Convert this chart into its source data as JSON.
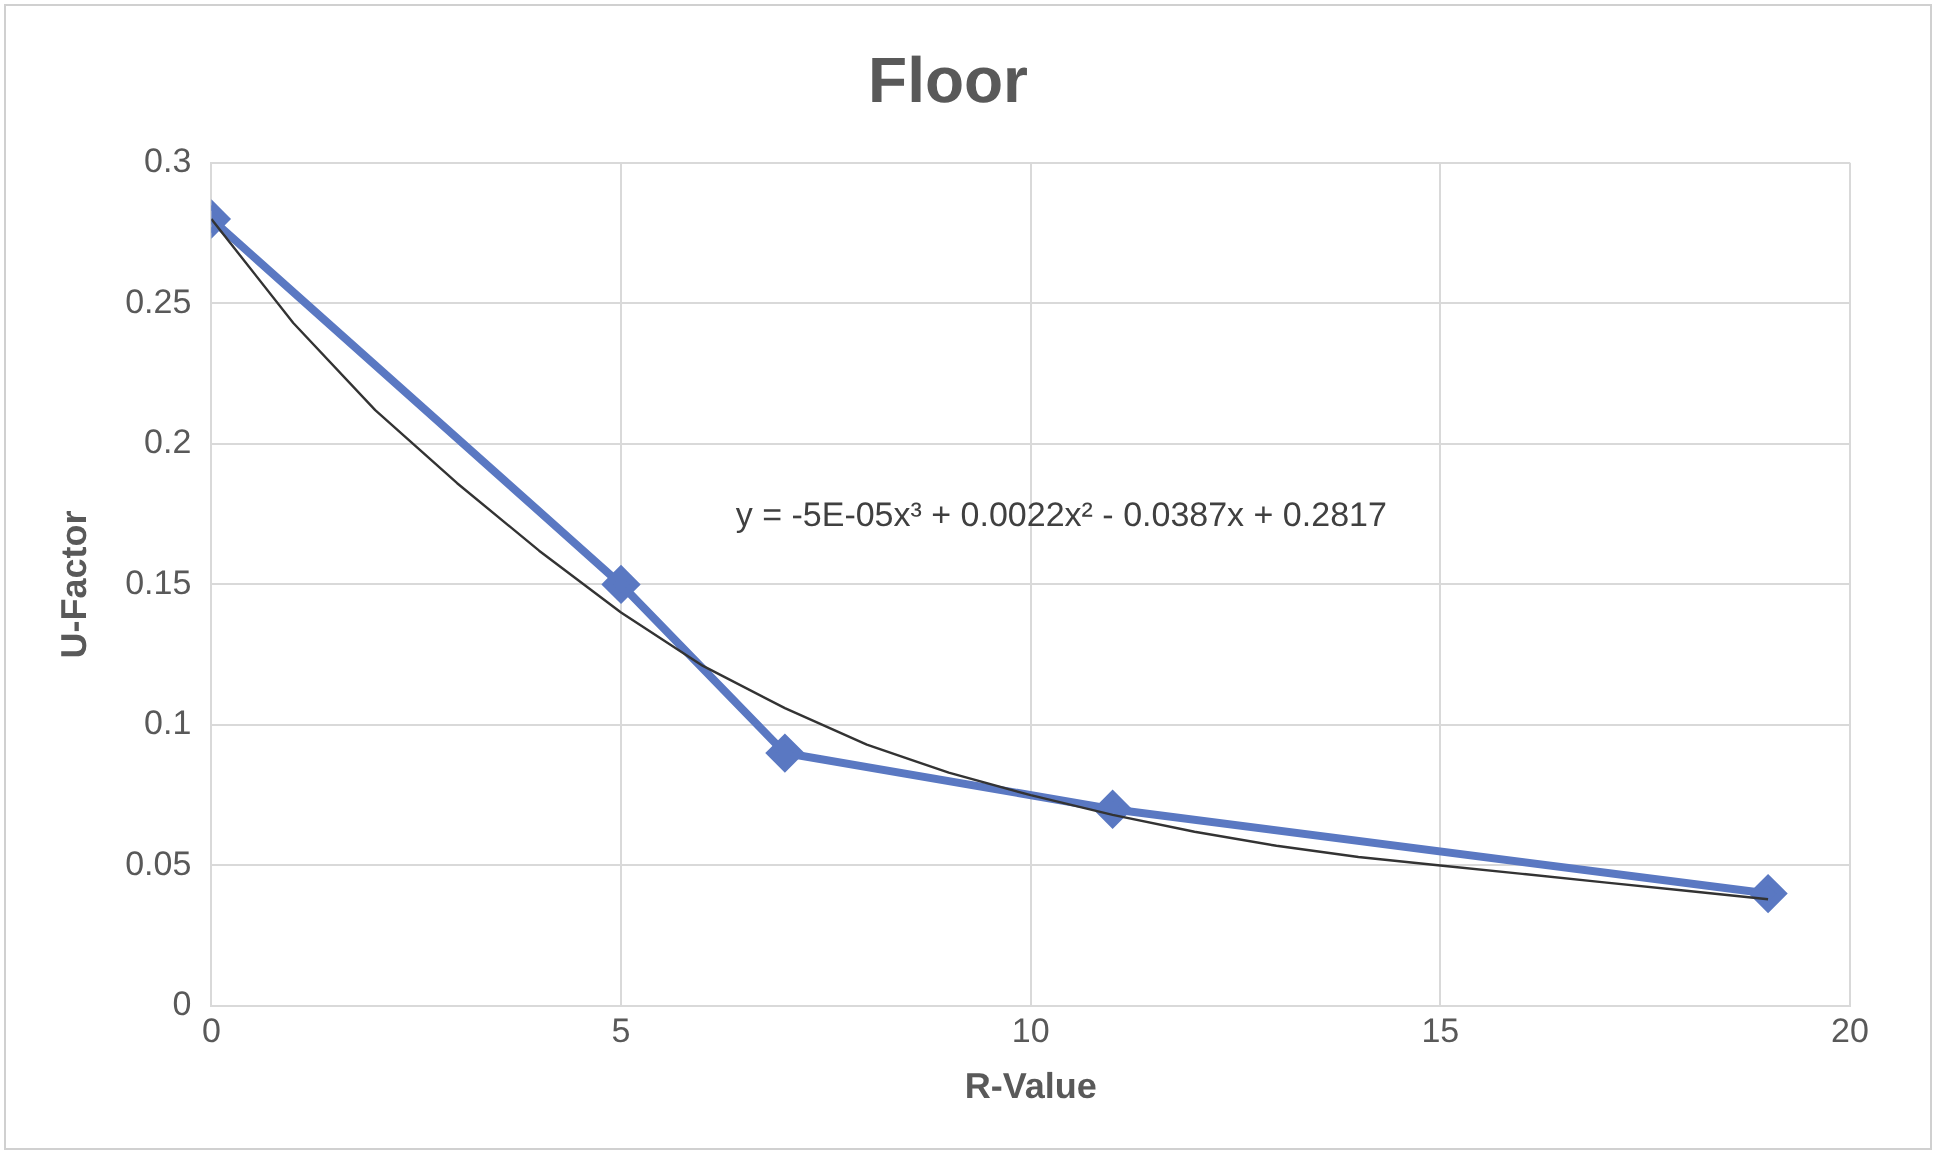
{
  "chart_data": {
    "type": "line",
    "title": "Floor",
    "xlabel": "R-Value",
    "ylabel": "U-Factor",
    "xlim": [
      0,
      20
    ],
    "xticks": [
      0,
      5,
      10,
      15,
      20
    ],
    "ylim": [
      0,
      0.3
    ],
    "yticks": [
      0,
      0.05,
      0.1,
      0.15,
      0.2,
      0.25,
      0.3
    ],
    "grid": true,
    "legend": false,
    "series": [
      {
        "type": "line",
        "color": "#5a78c2",
        "x": [
          0,
          5,
          7,
          11,
          19
        ],
        "values": [
          0.28,
          0.15,
          0.09,
          0.07,
          0.04
        ],
        "marker": "diamond"
      },
      {
        "type": "line",
        "color": "#333333",
        "x": [
          0,
          1,
          2,
          3,
          4,
          5,
          6,
          7,
          8,
          9,
          10,
          11,
          12,
          13,
          14,
          15,
          16,
          17,
          18,
          19
        ],
        "values": [
          0.28,
          0.243,
          0.212,
          0.186,
          0.162,
          0.14,
          0.121,
          0.106,
          0.093,
          0.083,
          0.075,
          0.068,
          0.062,
          0.057,
          0.053,
          0.05,
          0.047,
          0.044,
          0.041,
          0.038
        ],
        "marker": "none"
      }
    ],
    "annotations": [
      "y = -5E-05x³ + 0.0022x² - 0.0387x + 0.2817"
    ]
  }
}
